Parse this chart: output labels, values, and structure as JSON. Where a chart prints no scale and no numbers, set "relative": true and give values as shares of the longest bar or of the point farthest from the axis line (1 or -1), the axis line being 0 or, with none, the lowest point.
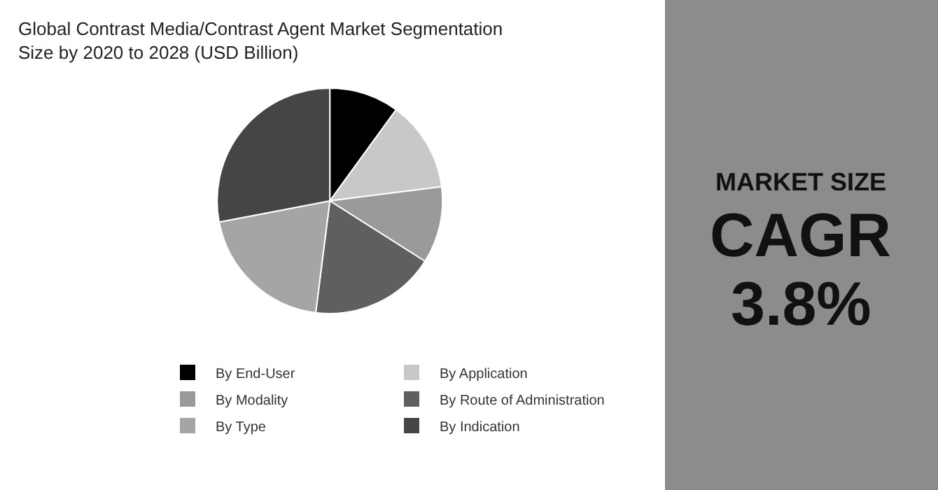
{
  "chart_data": [
    {
      "type": "pie",
      "title": "Global Contrast Media/Contrast Agent Market Segmentation Size by 2020 to 2028 (USD Billion)",
      "relative": true,
      "legend": "bottom",
      "categories": [
        "By End-User",
        "By Application",
        "By Modality",
        "By Route of Administration",
        "By Type",
        "By Indication"
      ],
      "values": [
        10,
        13,
        11,
        18,
        20,
        28
      ],
      "colors": [
        "#000000",
        "#c8c8c8",
        "#9a9a9a",
        "#5f5f5f",
        "#a5a5a5",
        "#454545"
      ]
    },
    {
      "type": "other",
      "annotations": [
        "MARKET SIZE",
        "CAGR",
        "3.8%"
      ]
    }
  ]
}
